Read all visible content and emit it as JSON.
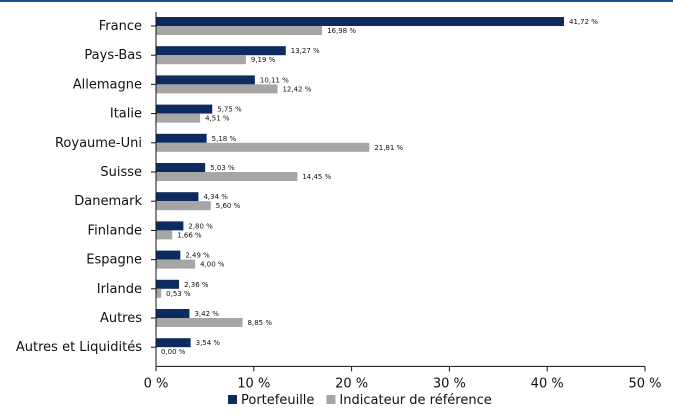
{
  "chart_data": {
    "type": "bar",
    "orientation": "horizontal",
    "categories": [
      "France",
      "Pays-Bas",
      "Allemagne",
      "Italie",
      "Royaume-Uni",
      "Suisse",
      "Danemark",
      "Finlande",
      "Espagne",
      "Irlande",
      "Autres",
      "Autres et Liquidités"
    ],
    "series": [
      {
        "name": "Portefeuille",
        "color": "#0d2b5e",
        "values": [
          41.72,
          13.27,
          10.11,
          5.75,
          5.18,
          5.03,
          4.34,
          2.8,
          2.49,
          2.36,
          3.42,
          3.54
        ],
        "labels": [
          "41,72 %",
          "13,27 %",
          "10,11 %",
          "5,75 %",
          "5,18 %",
          "5,03 %",
          "4,34 %",
          "2,80 %",
          "2,49 %",
          "2,36 %",
          "3,42 %",
          "3,54 %"
        ]
      },
      {
        "name": "Indicateur de référence",
        "color": "#a6a6a6",
        "values": [
          16.98,
          9.19,
          12.42,
          4.51,
          21.81,
          14.45,
          5.6,
          1.66,
          4.0,
          0.53,
          8.85,
          0.0
        ],
        "labels": [
          "16,98 %",
          "9,19 %",
          "12,42 %",
          "4,51 %",
          "21,81 %",
          "14,45 %",
          "5,60 %",
          "1,66 %",
          "4,00 %",
          "0,53 %",
          "8,85 %",
          "0,00 %"
        ]
      }
    ],
    "xlim": [
      0,
      50
    ],
    "xticks": [
      0,
      10,
      20,
      30,
      40,
      50
    ],
    "xtick_labels": [
      "0 %",
      "10 %",
      "20 %",
      "30 %",
      "40 %",
      "50 %"
    ],
    "grid": false,
    "legend_position": "bottom"
  }
}
